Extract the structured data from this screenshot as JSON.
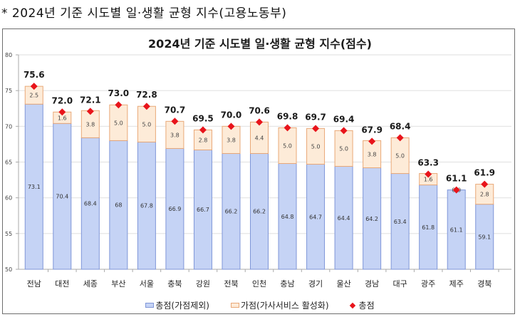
{
  "caption": "* 2024년 기준 시도별 일·생활 균형 지수(고용노동부)",
  "legend": {
    "base_label": "총점(가점제외)",
    "bonus_label": "가점(가사서비스 활성화)",
    "total_label": "총점"
  },
  "colors": {
    "base_fill": "#c5d3f5",
    "base_stroke": "#7f96d8",
    "bonus_fill": "#fdebd8",
    "bonus_stroke": "#e9a877",
    "marker": "#e8141b",
    "grid": "#e3e3e3"
  },
  "chart_data": {
    "type": "bar",
    "stacked": true,
    "title": "2024년 기준 시도별 일·생활 균형 지수(점수)",
    "xlabel": "",
    "ylabel": "",
    "ylim": [
      50,
      80
    ],
    "yticks": [
      50,
      55,
      60,
      65,
      70,
      75,
      80
    ],
    "grid": true,
    "legend_position": "bottom",
    "categories": [
      "전남",
      "대전",
      "세종",
      "부산",
      "서울",
      "충북",
      "강원",
      "전북",
      "인천",
      "충남",
      "경기",
      "울산",
      "경남",
      "대구",
      "광주",
      "제주",
      "경북"
    ],
    "series": [
      {
        "name": "총점(가점제외)",
        "kind": "bar",
        "values": [
          73.1,
          70.4,
          68.4,
          68,
          67.8,
          66.9,
          66.7,
          66.2,
          66.2,
          64.8,
          64.7,
          64.4,
          64.2,
          63.4,
          61.8,
          61.1,
          59.1
        ]
      },
      {
        "name": "가점(가사서비스 활성화)",
        "kind": "bar",
        "values": [
          2.5,
          1.6,
          3.8,
          5.0,
          5.0,
          3.8,
          2.8,
          3.8,
          4.4,
          5.0,
          5.0,
          5.0,
          3.8,
          5.0,
          1.6,
          0.0,
          2.8
        ]
      },
      {
        "name": "총점",
        "kind": "marker",
        "values": [
          75.6,
          72.0,
          72.1,
          73.0,
          72.8,
          70.7,
          69.5,
          70.0,
          70.6,
          69.8,
          69.7,
          69.4,
          67.9,
          68.4,
          63.3,
          61.1,
          61.9
        ]
      }
    ],
    "base_labels": [
      "73.1",
      "70.4",
      "68.4",
      "68",
      "67.8",
      "66.9",
      "66.7",
      "66.2",
      "66.2",
      "64.8",
      "64.7",
      "64.4",
      "64.2",
      "63.4",
      "61.8",
      "61.1",
      "59.1"
    ],
    "bonus_labels": [
      "2.5",
      "1.6",
      "3.8",
      "5.0",
      "5.0",
      "3.8",
      "2.8",
      "3.8",
      "4.4",
      "5.0",
      "5.0",
      "5.0",
      "3.8",
      "5.0",
      "1.6",
      "0.0",
      "2.8"
    ],
    "total_labels": [
      "75.6",
      "72.0",
      "72.1",
      "73.0",
      "72.8",
      "70.7",
      "69.5",
      "70.0",
      "70.6",
      "69.8",
      "69.7",
      "69.4",
      "67.9",
      "68.4",
      "63.3",
      "61.1",
      "61.9"
    ]
  }
}
